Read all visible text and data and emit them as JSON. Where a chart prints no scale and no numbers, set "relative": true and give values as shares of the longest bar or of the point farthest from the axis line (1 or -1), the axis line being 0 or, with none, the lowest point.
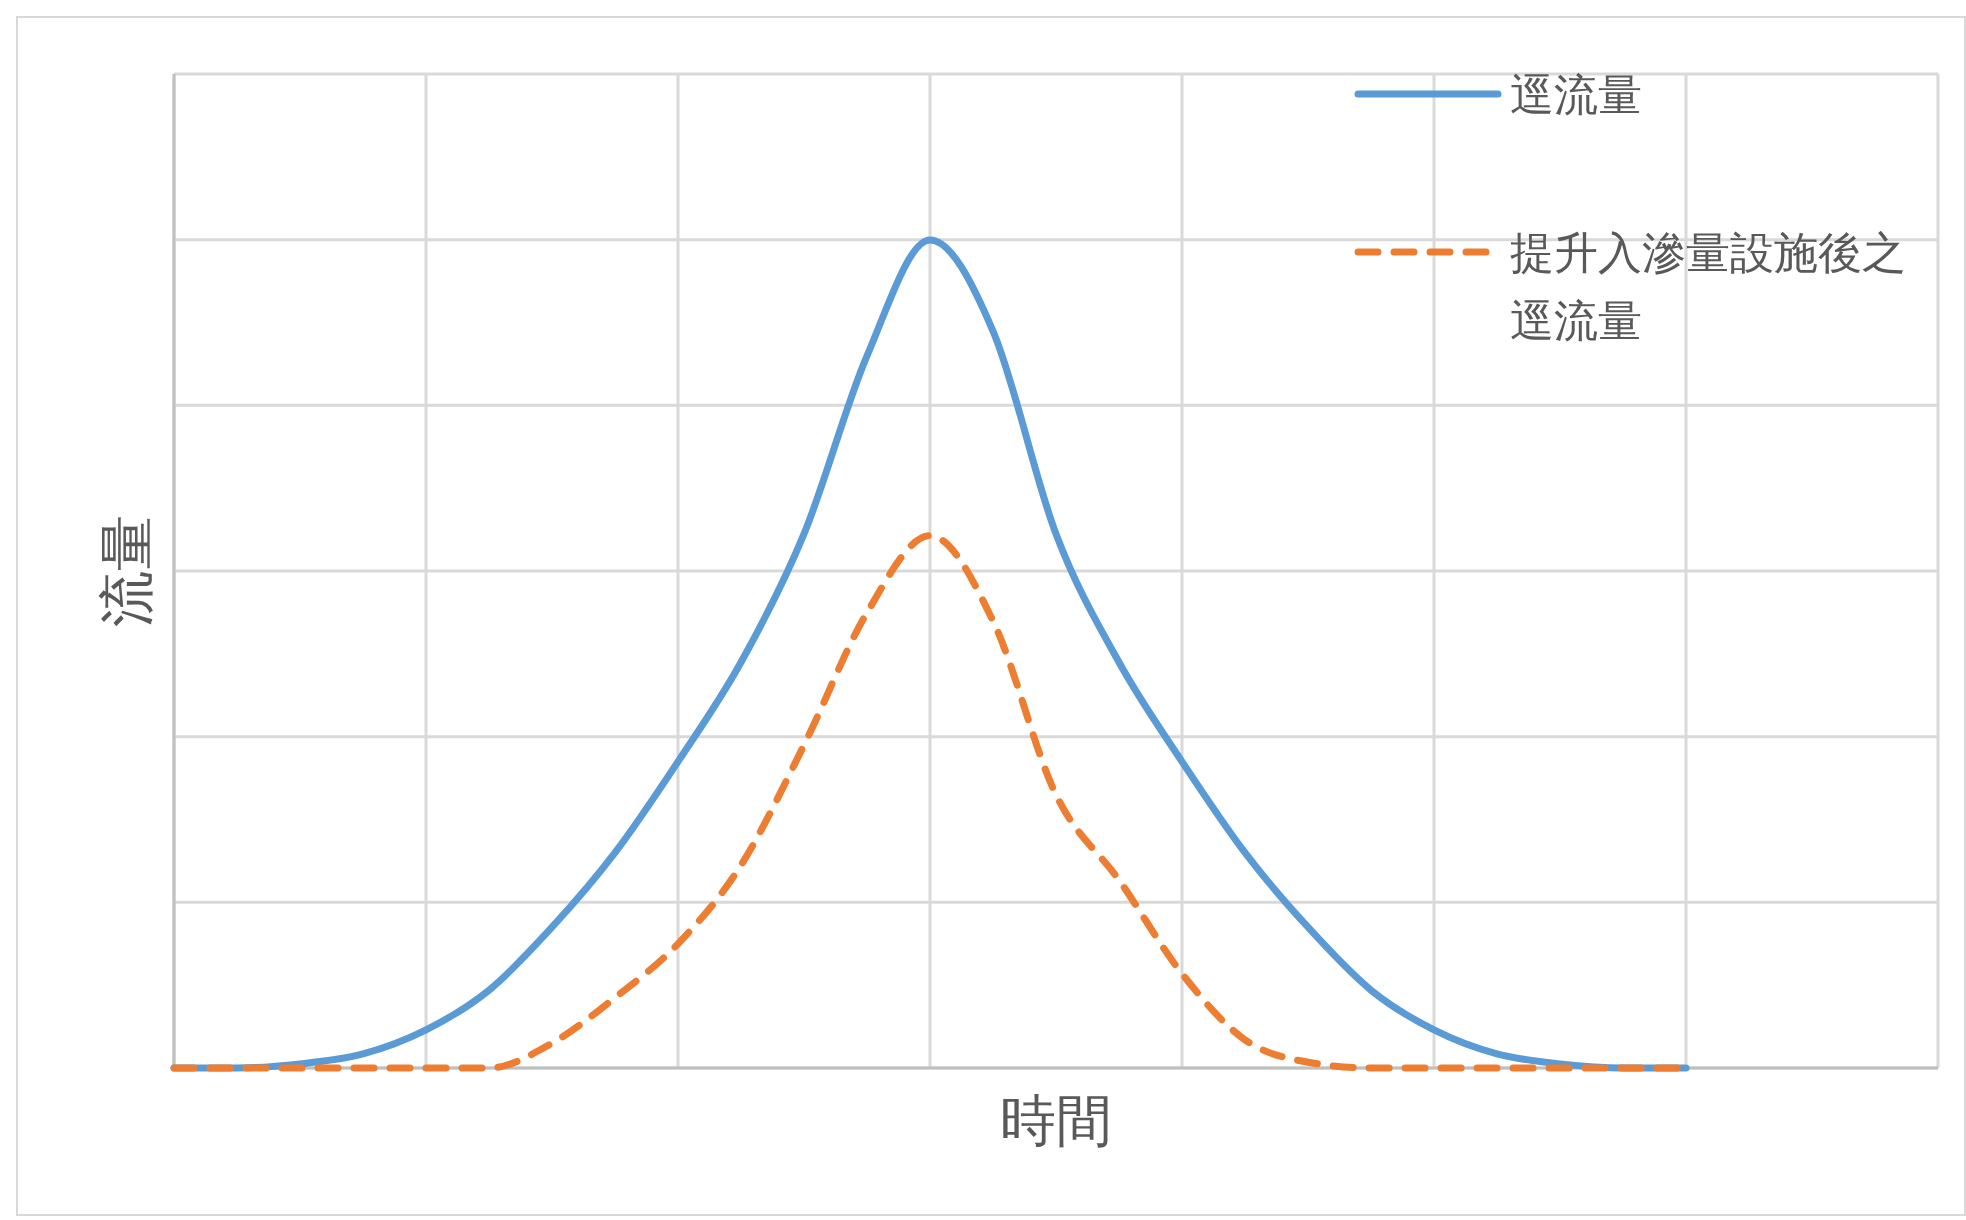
{
  "chart_data": {
    "type": "line",
    "xlabel": "時間",
    "ylabel": "流量",
    "relative": true,
    "grid": true,
    "legend": "top right",
    "categories": [
      null,
      null,
      null,
      null,
      null,
      null,
      null,
      null,
      null,
      null,
      null,
      null,
      null,
      null,
      null,
      null,
      null,
      null,
      null,
      null,
      null,
      null,
      null,
      null,
      null,
      null,
      null,
      null,
      null
    ],
    "series": [
      {
        "name": "逕流量",
        "color": "#5b9bd5",
        "line_style": "solid",
        "values": [
          0,
          0,
          0.005,
          0.017,
          0.046,
          0.094,
          0.17,
          0.26,
          0.37,
          0.49,
          0.645,
          0.86,
          1,
          0.89,
          0.645,
          0.49,
          0.37,
          0.26,
          0.17,
          0.094,
          0.046,
          0.017,
          0.005,
          0,
          0,
          null,
          null,
          null,
          null
        ]
      },
      {
        "name": "提升入滲量設施後之逕流量",
        "color": "#ed7d31",
        "line_style": "dashed",
        "values": [
          0,
          0,
          0,
          0,
          0,
          0,
          0.03,
          0.085,
          0.15,
          0.245,
          0.39,
          0.55,
          0.643,
          0.54,
          0.33,
          0.227,
          0.114,
          0.034,
          0.007,
          0,
          0,
          0,
          0,
          0,
          0,
          null,
          null,
          null,
          null
        ]
      }
    ]
  }
}
